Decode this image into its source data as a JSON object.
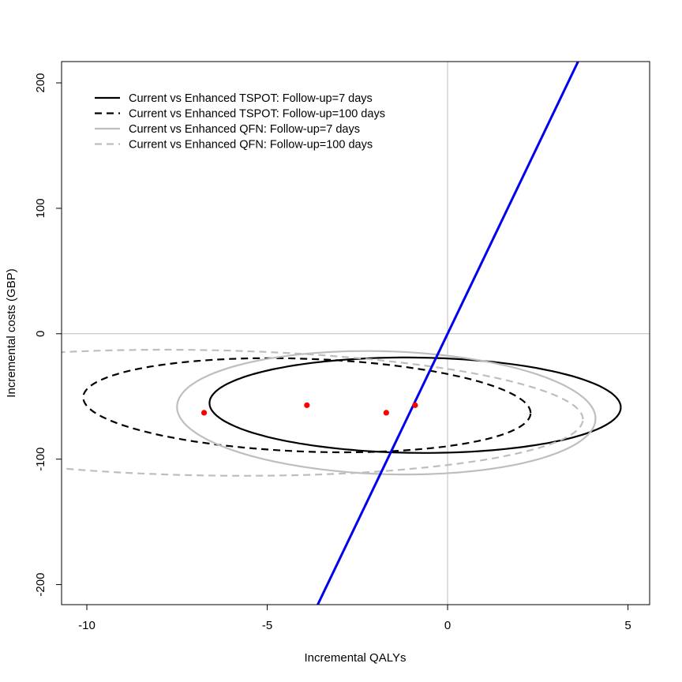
{
  "chart_data": {
    "type": "scatter",
    "title": "",
    "xlabel": "Incremental QALYs",
    "ylabel": "Incremental costs (GBP)",
    "xlim": [
      -10.7,
      5.6
    ],
    "ylim": [
      -216,
      217
    ],
    "xticks": [
      -10,
      -5,
      0,
      5
    ],
    "yticks": [
      -200,
      -100,
      0,
      100,
      200
    ],
    "xtick_labels": [
      "-10",
      "-5",
      "0",
      "5"
    ],
    "ytick_labels": [
      "-200",
      "-100",
      "0",
      "100",
      "200"
    ],
    "grid": false,
    "reference_lines": {
      "x": 0,
      "y": 0,
      "color": "#bebebe"
    },
    "threshold_line": {
      "slope_gbp_per_qaly": 60,
      "color": "#0000ee"
    },
    "legend_position": "top-left",
    "point_color": "#ff0000",
    "points": [
      {
        "x": -6.75,
        "y": -63
      },
      {
        "x": -3.9,
        "y": -57
      },
      {
        "x": -1.7,
        "y": -63
      },
      {
        "x": -0.9,
        "y": -57
      }
    ],
    "series": [
      {
        "name": "Current vs Enhanced TSPOT: Follow-up=7 days",
        "color": "#000000",
        "dash": "solid",
        "ellipse": {
          "center": [
            -0.9,
            -57
          ],
          "semi_axis_x": 5.7,
          "semi_axis_y": 38,
          "tilt": -0.3
        }
      },
      {
        "name": "Current vs Enhanced TSPOT: Follow-up=100 days",
        "color": "#000000",
        "dash": "dashed",
        "ellipse": {
          "center": [
            -3.9,
            -57
          ],
          "semi_axis_x": 6.2,
          "semi_axis_y": 37,
          "tilt": -1.0
        }
      },
      {
        "name": "Current vs Enhanced QFN: Follow-up=7 days",
        "color": "#bebebe",
        "dash": "solid",
        "ellipse": {
          "center": [
            -1.7,
            -63
          ],
          "semi_axis_x": 5.8,
          "semi_axis_y": 49,
          "tilt": -0.8
        }
      },
      {
        "name": "Current vs Enhanced QFN: Follow-up=100 days",
        "color": "#bebebe",
        "dash": "dashed",
        "ellipse": {
          "center": [
            -6.75,
            -63
          ],
          "semi_axis_x": 10.5,
          "semi_axis_y": 50,
          "tilt": -0.5
        }
      }
    ]
  }
}
